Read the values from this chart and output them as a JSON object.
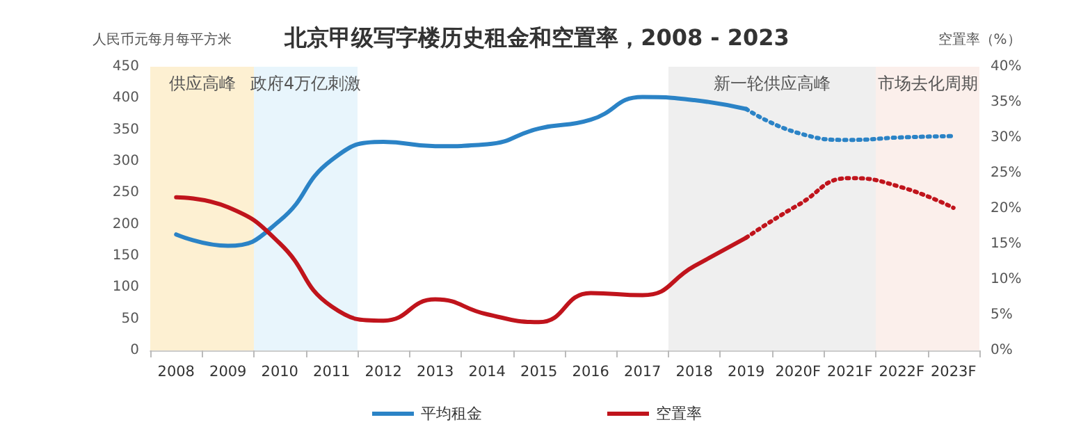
{
  "chart_data": {
    "type": "line",
    "title": "北京甲级写字楼历史租金和空置率，2008 - 2023",
    "ylabel": "人民币元每月每平方米",
    "y2label": "空置率（%）",
    "categories": [
      "2008",
      "2009",
      "2010",
      "2011",
      "2012",
      "2013",
      "2014",
      "2015",
      "2016",
      "2017",
      "2018",
      "2019",
      "2020F",
      "2021F",
      "2022F",
      "2023F"
    ],
    "series": [
      {
        "name": "平均租金",
        "color": "#2b83c6",
        "line_style": "solid",
        "values": [
          184,
          166,
          206,
          302,
          331,
          324,
          327,
          352,
          366,
          402,
          397,
          383,
          null,
          null,
          null,
          null
        ]
      },
      {
        "color": "#2b83c6",
        "line_style": "dotted",
        "values": [
          null,
          null,
          null,
          null,
          null,
          null,
          null,
          null,
          null,
          null,
          null,
          383,
          345,
          334,
          338,
          340
        ]
      },
      {
        "name": "空置率",
        "color": "#c0141c",
        "axis": "y2",
        "line_style": "solid",
        "values": [
          21.6,
          20.2,
          15.1,
          6.2,
          4.2,
          7.2,
          5.1,
          4.0,
          8.1,
          7.8,
          11.9,
          15.9,
          null,
          null,
          null,
          null
        ]
      },
      {
        "color": "#c0141c",
        "axis": "y2",
        "line_style": "dotted",
        "values": [
          null,
          null,
          null,
          null,
          null,
          null,
          null,
          null,
          null,
          null,
          null,
          15.9,
          20.5,
          24.3,
          23.0,
          20.1
        ]
      }
    ],
    "ylim": [
      0,
      450
    ],
    "yticks": [
      0,
      50,
      100,
      150,
      200,
      250,
      300,
      350,
      400,
      450
    ],
    "y2lim": [
      0,
      40
    ],
    "y2ticks": [
      {
        "value": 0,
        "label": "0%"
      },
      {
        "value": 5,
        "label": "5%"
      },
      {
        "value": 10,
        "label": "10%"
      },
      {
        "value": 15,
        "label": "15%"
      },
      {
        "value": 20,
        "label": "20%"
      },
      {
        "value": 25,
        "label": "25%"
      },
      {
        "value": 30,
        "label": "30%"
      },
      {
        "value": 35,
        "label": "35%"
      },
      {
        "value": 40,
        "label": "40%"
      }
    ],
    "bands": [
      {
        "axis": "x",
        "from": "2008",
        "to": "2009",
        "label": "供应高峰",
        "color": "#fdf0d2"
      },
      {
        "axis": "x",
        "from": "2010",
        "to": "2011",
        "label": "政府4万亿刺激",
        "color": "#e8f5fc"
      },
      {
        "axis": "x",
        "from": "2018",
        "to": "2021F",
        "label": "新一轮供应高峰",
        "color": "#efefef"
      },
      {
        "axis": "x",
        "from": "2022F",
        "to": "2023F",
        "label": "市场去化周期",
        "color": "#fbefeb"
      }
    ],
    "grid": false,
    "legend": "bottom",
    "marker": "none"
  }
}
